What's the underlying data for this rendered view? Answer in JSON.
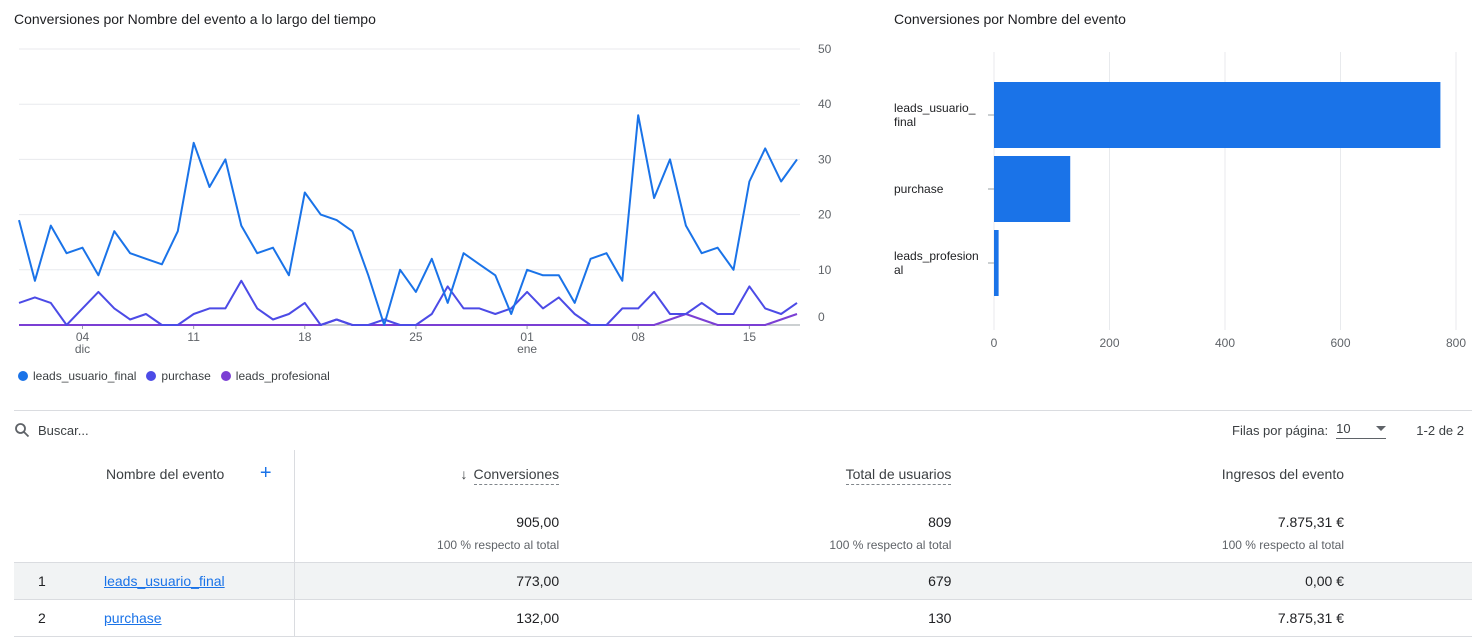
{
  "line_chart": {
    "title": "Conversiones por Nombre del evento a lo largo del tiempo",
    "x_ticks": [
      {
        "index": 4,
        "label": "04",
        "sub": "dic"
      },
      {
        "index": 11,
        "label": "11",
        "sub": ""
      },
      {
        "index": 18,
        "label": "18",
        "sub": ""
      },
      {
        "index": 25,
        "label": "25",
        "sub": ""
      },
      {
        "index": 32,
        "label": "01",
        "sub": "ene"
      },
      {
        "index": 39,
        "label": "08",
        "sub": ""
      },
      {
        "index": 46,
        "label": "15",
        "sub": ""
      }
    ],
    "y_ticks": [
      "0",
      "10",
      "20",
      "30",
      "40",
      "50"
    ],
    "legend": [
      {
        "name": "leads_usuario_final",
        "color": "#1a73e8"
      },
      {
        "name": "purchase",
        "color": "#4c4be6"
      },
      {
        "name": "leads_profesional",
        "color": "#7b3fd4"
      }
    ]
  },
  "bar_chart": {
    "title": "Conversiones por Nombre del evento",
    "categories": [
      [
        "leads_usuario_",
        "final"
      ],
      [
        "purchase"
      ],
      [
        "leads_profesion",
        "al"
      ]
    ],
    "x_ticks": [
      "0",
      "200",
      "400",
      "600",
      "800"
    ],
    "bar_color": "#1a73e8"
  },
  "chart_data": [
    {
      "type": "line",
      "title": "Conversiones por Nombre del evento a lo largo del tiempo",
      "x_start": "2023-11-30",
      "ylim": [
        0,
        50
      ],
      "series": [
        {
          "name": "leads_usuario_final",
          "color": "#1a73e8",
          "values": [
            19,
            8,
            18,
            13,
            14,
            9,
            17,
            13,
            12,
            11,
            17,
            33,
            25,
            30,
            18,
            13,
            14,
            9,
            24,
            20,
            19,
            17,
            9,
            0,
            10,
            6,
            12,
            4,
            13,
            11,
            9,
            2,
            10,
            9,
            9,
            4,
            12,
            13,
            8,
            38,
            23,
            30,
            18,
            13,
            14,
            10,
            26,
            32,
            26,
            30
          ]
        },
        {
          "name": "purchase",
          "color": "#4c4be6",
          "values": [
            4,
            5,
            4,
            0,
            3,
            6,
            3,
            1,
            2,
            0,
            0,
            2,
            3,
            3,
            8,
            3,
            1,
            2,
            4,
            0,
            1,
            0,
            0,
            1,
            0,
            0,
            2,
            7,
            3,
            3,
            2,
            3,
            6,
            3,
            5,
            2,
            0,
            0,
            3,
            3,
            6,
            2,
            2,
            4,
            2,
            2,
            7,
            3,
            2,
            4
          ]
        },
        {
          "name": "leads_profesional",
          "color": "#7b3fd4",
          "values": [
            0,
            0,
            0,
            0,
            0,
            0,
            0,
            0,
            0,
            0,
            0,
            0,
            0,
            0,
            0,
            0,
            0,
            0,
            0,
            0,
            1,
            0,
            0,
            0,
            0,
            0,
            0,
            0,
            0,
            0,
            0,
            0,
            0,
            0,
            0,
            0,
            0,
            0,
            0,
            0,
            0,
            1,
            2,
            1,
            0,
            0,
            0,
            0,
            1,
            2
          ]
        }
      ]
    },
    {
      "type": "bar",
      "orientation": "horizontal",
      "title": "Conversiones por Nombre del evento",
      "categories": [
        "leads_usuario_final",
        "purchase",
        "leads_profesional"
      ],
      "values": [
        773,
        132,
        8
      ],
      "xlim": [
        0,
        800
      ]
    }
  ],
  "table": {
    "search_placeholder": "Buscar...",
    "rows_per_page_label": "Filas por página:",
    "rows_per_page_value": "10",
    "pagination": "1-2 de 2",
    "headers": {
      "dimension": "Nombre del evento",
      "conversions": "Conversiones",
      "users": "Total de usuarios",
      "revenue": "Ingresos del evento"
    },
    "totals": {
      "conversions": "905,00",
      "users": "809",
      "revenue": "7.875,31 €",
      "pct": "100 % respecto al total"
    },
    "rows": [
      {
        "index": "1",
        "name": "leads_usuario_final",
        "conversions": "773,00",
        "users": "679",
        "revenue": "0,00 €"
      },
      {
        "index": "2",
        "name": "purchase",
        "conversions": "132,00",
        "users": "130",
        "revenue": "7.875,31 €"
      }
    ]
  }
}
